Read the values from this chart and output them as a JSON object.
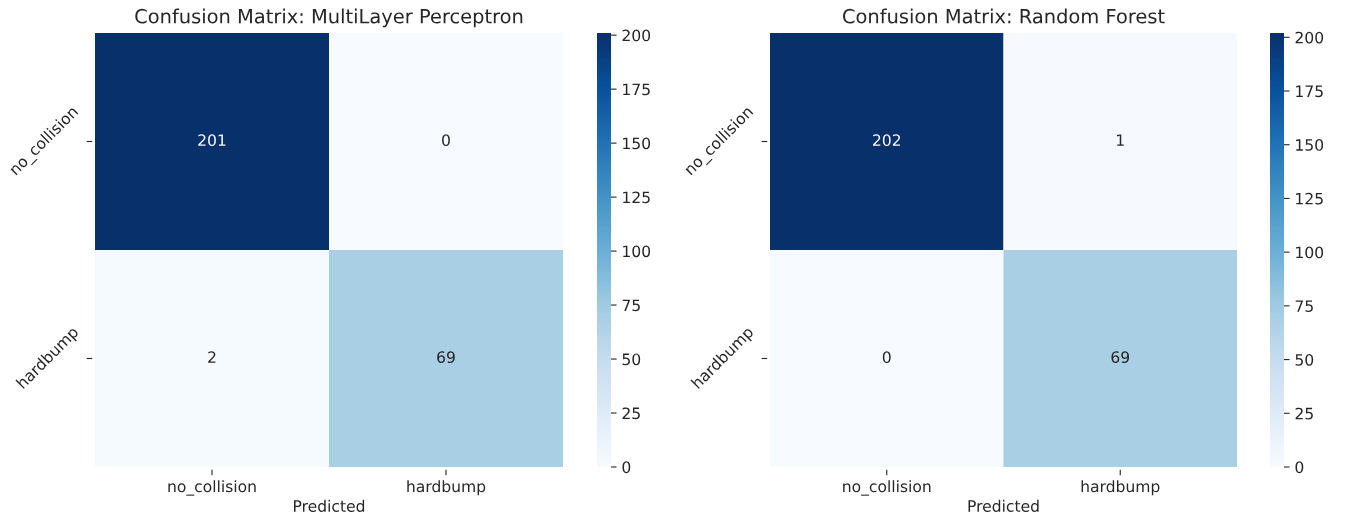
{
  "chart_data": [
    {
      "type": "heatmap",
      "title": "Confusion Matrix: MultiLayer Perceptron",
      "xlabel": "Predicted",
      "categories": [
        "no_collision",
        "hardbump"
      ],
      "y_categories": [
        "no_collision",
        "hardbump"
      ],
      "cells": [
        [
          201,
          0
        ],
        [
          2,
          69
        ]
      ],
      "clim": [
        0,
        201
      ],
      "cticks": [
        0,
        25,
        50,
        75,
        100,
        125,
        150,
        175,
        200
      ],
      "data_labels": true
    },
    {
      "type": "heatmap",
      "title": "Confusion Matrix: Random Forest",
      "xlabel": "Predicted",
      "categories": [
        "no_collision",
        "hardbump"
      ],
      "y_categories": [
        "no_collision",
        "hardbump"
      ],
      "cells": [
        [
          202,
          1
        ],
        [
          0,
          69
        ]
      ],
      "clim": [
        0,
        202
      ],
      "cticks": [
        0,
        25,
        50,
        75,
        100,
        125,
        150,
        175,
        200
      ],
      "data_labels": true
    }
  ]
}
